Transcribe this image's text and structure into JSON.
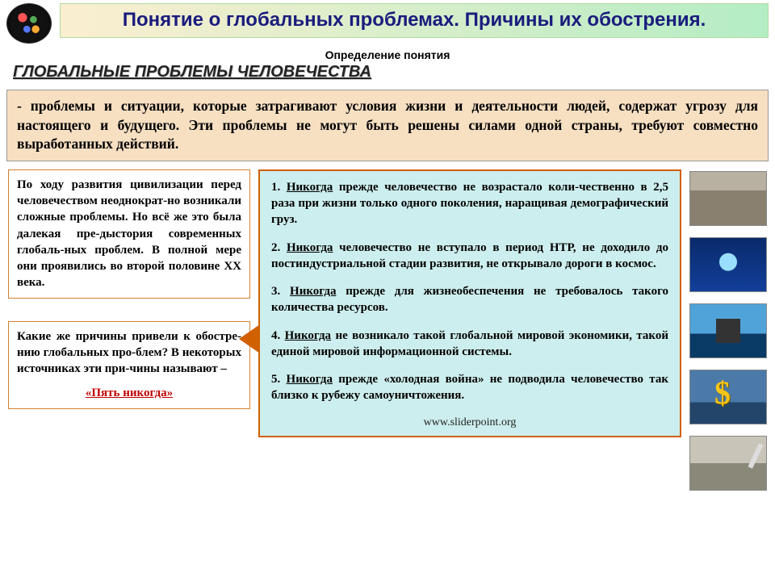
{
  "header": {
    "title": "Понятие о глобальных проблемах. Причины их обострения."
  },
  "subtitle": "Определение понятия",
  "heading": "ГЛОБАЛЬНЫЕ ПРОБЛЕМЫ ЧЕЛОВЕЧЕСТВА",
  "definition": "- проблемы и ситуации, которые затрагивают условия жизни и деятельности людей, содержат угрозу для настоящего и будущего. Эти проблемы не могут быть решены силами одной страны, требуют совместно выработанных действий.",
  "left": {
    "history_text": "По ходу развития цивилизации перед человечеством неоднократ-но возникали сложные проблемы. Но всё же это была далекая пре-дыстория современных глобаль-ных проблем. В полной мере они проявились во второй половине ХХ века.",
    "question_text": "Какие же причины привели к обостре-нию глобальных про-блем? В некоторых источниках эти при-чины называют –",
    "five_never_label": "«Пять никогда»"
  },
  "never_list": {
    "keyword": "Никогда",
    "items": [
      {
        "num": "1.",
        "rest": " прежде человечество не возрастало коли-чественно в 2,5 раза при жизни только одного поколения, наращивая демографический груз."
      },
      {
        "num": "2.",
        "rest": " человечество не вступало в период НТР, не доходило до постиндустриальной стадии развития, не открывало дороги в космос."
      },
      {
        "num": "3.",
        "rest": " прежде для жизнеобеспечения не требовалось такого количества ресурсов."
      },
      {
        "num": "4.",
        "rest": " не возникало такой глобальной мировой экономики, такой единой мировой информационной системы."
      },
      {
        "num": "5.",
        "rest": " прежде «холодная война» не подводила человечество так близко к рубежу самоуничтожения."
      }
    ]
  },
  "site_credit": "www.sliderpoint.org",
  "thumbs": [
    {
      "name": "thumb-crowd",
      "class": "crowd"
    },
    {
      "name": "thumb-space",
      "class": "space"
    },
    {
      "name": "thumb-oil-rig",
      "class": "rig"
    },
    {
      "name": "thumb-dollar",
      "class": "dollar"
    },
    {
      "name": "thumb-missile",
      "class": "missile"
    }
  ],
  "colors": {
    "title_gradient_from": "#fbeed0",
    "title_gradient_to": "#b4edc4",
    "definition_bg": "#f7dfc2",
    "callout_bg": "#cdeeee",
    "callout_border": "#d06000",
    "five_never_color": "#c00000",
    "heading_color": "#222222",
    "title_text_color": "#1a1c7d"
  }
}
